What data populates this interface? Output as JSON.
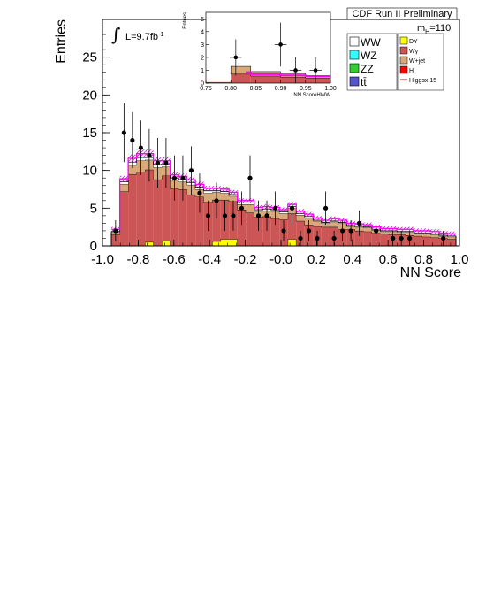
{
  "chart_data": [
    {
      "type": "histogram",
      "xlabel": "NN Score",
      "ylabel": "Entries",
      "xlim": [
        -1.0,
        1.0
      ],
      "ylim": [
        0,
        30
      ],
      "xticks": [
        -1.0,
        -0.8,
        -0.6,
        -0.4,
        -0.2,
        -0.0,
        0.2,
        0.4,
        0.6,
        0.8,
        1.0
      ],
      "xtick_labels": [
        "-1.0",
        "-0.8",
        "-0.6",
        "-0.4",
        "-0.2",
        "-0.0",
        "0.2",
        "0.4",
        "0.6",
        "0.8",
        "1.0"
      ],
      "yticks": [
        0,
        5,
        10,
        15,
        20,
        25
      ],
      "bin_edges": [
        -1.0,
        0.05
      ],
      "data": [
        2,
        15,
        14,
        13,
        12,
        11,
        11,
        9,
        9,
        10,
        7,
        4,
        6,
        4,
        4,
        5,
        9,
        4,
        4,
        5,
        2,
        5,
        1,
        2,
        1,
        5,
        1,
        2,
        2,
        3,
        0,
        2,
        0,
        1,
        1,
        1,
        0,
        0,
        0,
        1,
        0
      ],
      "data_err": [
        1.4,
        3.9,
        3.7,
        3.6,
        3.5,
        3.3,
        3.3,
        3.0,
        3.0,
        3.2,
        2.6,
        2.0,
        2.4,
        2.0,
        2.0,
        2.2,
        3.0,
        2.0,
        2.0,
        2.2,
        1.4,
        2.2,
        1.0,
        1.4,
        1.0,
        2.2,
        1.0,
        1.4,
        1.4,
        1.7,
        0,
        1.4,
        0,
        1.0,
        1.0,
        1.0,
        0,
        0,
        0,
        1.0,
        0
      ],
      "stack": [
        {
          "name": "DY",
          "color": "#ffff00",
          "values": [
            0,
            0,
            0,
            0,
            0.5,
            0,
            0.7,
            0,
            0,
            0,
            0,
            0,
            0.6,
            0.9,
            0.9,
            0,
            0,
            0,
            0,
            0,
            0,
            0.9,
            0,
            0,
            0,
            0,
            0,
            0,
            0,
            0,
            0,
            0,
            0,
            0,
            0,
            0,
            0,
            0,
            0,
            0,
            0
          ]
        },
        {
          "name": "Wγ",
          "color": "#cc5555",
          "values": [
            1.5,
            7.2,
            9.5,
            9.8,
            9.6,
            8.8,
            8.6,
            7.6,
            7.5,
            6.8,
            6.5,
            5.8,
            5.5,
            5.2,
            5.0,
            4.8,
            4.4,
            3.8,
            3.9,
            3.6,
            3.5,
            3.4,
            3.3,
            2.8,
            2.6,
            2.5,
            2.5,
            2.2,
            2.2,
            2.0,
            1.9,
            1.7,
            1.6,
            1.5,
            1.5,
            1.4,
            1.3,
            1.2,
            1.1,
            1.0,
            0.9
          ]
        },
        {
          "name": "W+jet",
          "color": "#d9a878",
          "values": [
            0.3,
            1.0,
            1.2,
            1.5,
            1.3,
            1.6,
            1.2,
            1.1,
            1.0,
            1.3,
            1.0,
            1.2,
            1.0,
            0.9,
            0.7,
            0.7,
            1.1,
            0.8,
            0.8,
            1.0,
            0.8,
            0.7,
            0.8,
            0.9,
            0.7,
            0.5,
            0.7,
            0.8,
            0.4,
            0.5,
            0.5,
            0.4,
            0.3,
            0.4,
            0.3,
            0.4,
            0.3,
            0.4,
            0.4,
            0.3,
            0.3
          ]
        },
        {
          "name": "WW",
          "color": "#ffffff",
          "values": [
            0.1,
            0.3,
            0.4,
            0.4,
            0.3,
            0.4,
            0.3,
            0.3,
            0.3,
            0.3,
            0.3,
            0.3,
            0.2,
            0.2,
            0.2,
            0.2,
            0.2,
            0.2,
            0.2,
            0.2,
            0.2,
            0.2,
            0.2,
            0.2,
            0.1,
            0.1,
            0.1,
            0.1,
            0.1,
            0.1,
            0.1,
            0.1,
            0.1,
            0.1,
            0.1,
            0.1,
            0.1,
            0.1,
            0.1,
            0.1,
            0.1
          ]
        }
      ],
      "signal_band": {
        "name": "Higgsx 15",
        "color": "#ff00ff"
      },
      "legend": {
        "left": [
          {
            "label": "WW",
            "color": "#ffffff"
          },
          {
            "label": "WZ",
            "color": "#33ffff"
          },
          {
            "label": "ZZ",
            "color": "#33cc33"
          },
          {
            "label": "tt̄",
            "color": "#5555cc"
          }
        ],
        "right": [
          {
            "label": "DY",
            "color": "#ffff00"
          },
          {
            "label": "Wγ",
            "color": "#cc5555"
          },
          {
            "label": "W+jet",
            "color": "#d9a878"
          },
          {
            "label": "H",
            "color": "#ff0000"
          },
          {
            "label": "Higgsx 15",
            "color": "#ff0000",
            "line": true
          }
        ]
      },
      "annotations": {
        "title": "CDF Run II Preliminary",
        "mass": "m",
        "mass_sub": "H",
        "mass_value": "=110",
        "lumi": "L=9.7fb",
        "lumi_sup": "-1",
        "integral": "∫"
      }
    },
    {
      "type": "histogram",
      "name": "inset",
      "xlabel": "NN ScoreHWW",
      "ylabel": "Entries",
      "xlim": [
        0.75,
        1.0
      ],
      "ylim": [
        0,
        5.5
      ],
      "xticks": [
        0.75,
        0.8,
        0.85,
        0.9,
        0.95,
        1.0
      ],
      "xtick_labels": [
        "0.75",
        "0.80",
        "0.85",
        "0.90",
        "0.95",
        "1.00"
      ],
      "yticks": [
        0,
        1,
        2,
        3,
        4,
        5
      ],
      "bins": [
        0.8,
        0.85,
        0.9,
        0.95,
        1.0
      ],
      "data_points": [
        {
          "x": 0.81,
          "y": 2,
          "err": 1.4
        },
        {
          "x": 0.9,
          "y": 3,
          "err": 1.7
        },
        {
          "x": 0.93,
          "y": 1,
          "err": 1.0
        },
        {
          "x": 0.97,
          "y": 1,
          "err": 1.0
        }
      ],
      "wg": [
        0.7,
        0.55,
        0.45,
        0.38
      ],
      "wjet": [
        0.6,
        0.35,
        0.3,
        0.2
      ],
      "higgs": [
        0.85,
        0.7,
        0.6,
        0.55
      ]
    }
  ]
}
